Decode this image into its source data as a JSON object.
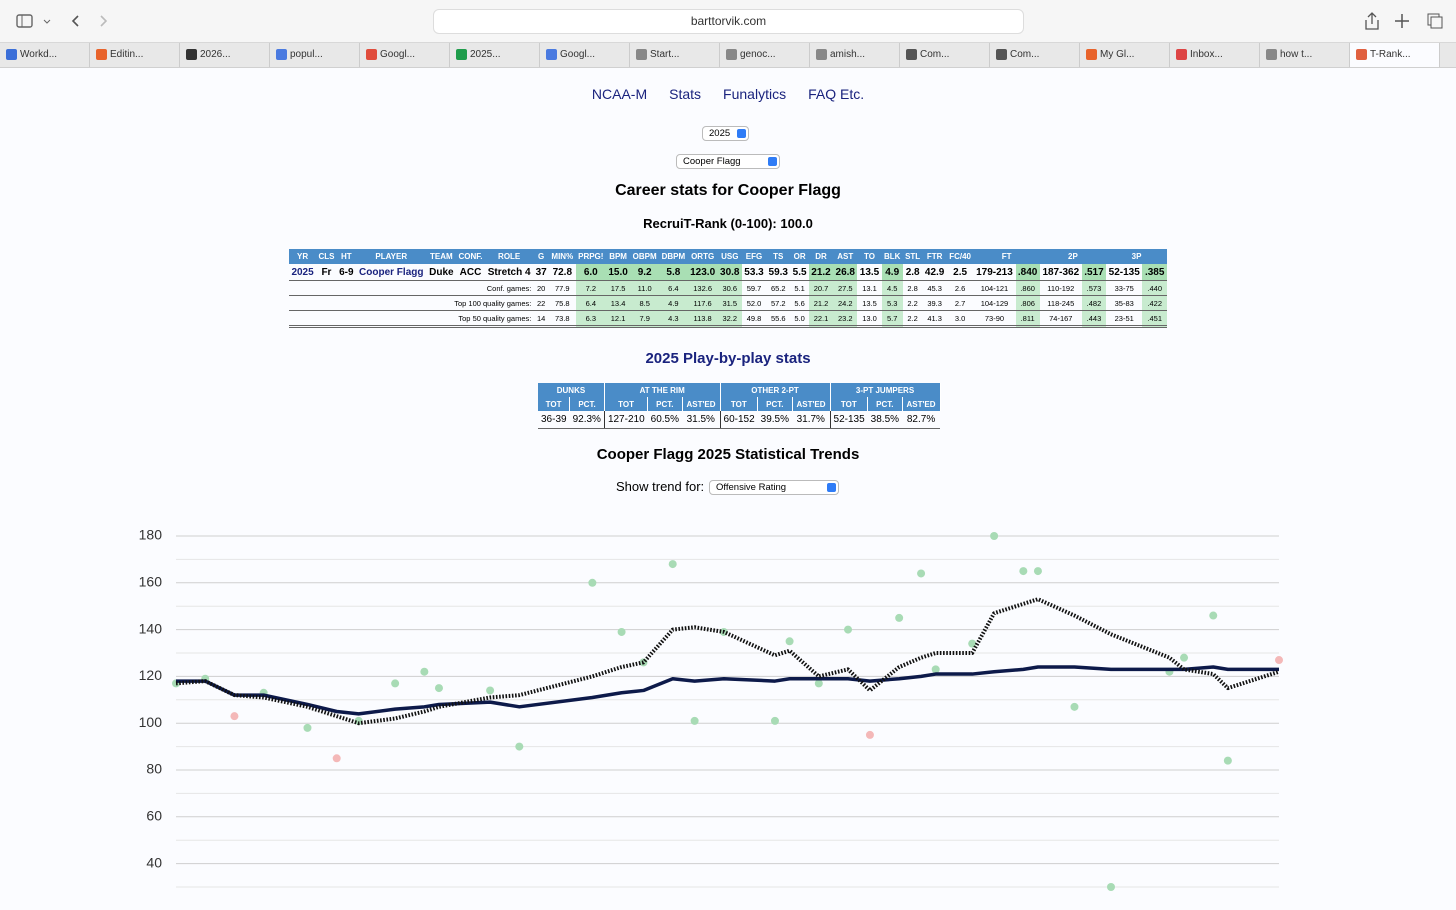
{
  "browser": {
    "url": "barttorvik.com",
    "tabs": [
      "Workd...",
      "Editin...",
      "2026...",
      "popul...",
      "Googl...",
      "2025...",
      "Googl...",
      "Start...",
      "genoc...",
      "amish...",
      "Com...",
      "Com...",
      "My Gl...",
      "Inbox...",
      "how t...",
      "T-Rank..."
    ]
  },
  "nav": [
    "NCAA-M",
    "Stats",
    "Funalytics",
    "FAQ Etc."
  ],
  "year_select": "2025",
  "player_select": "Cooper Flagg",
  "title": "Career stats for Cooper Flagg",
  "recruit_rank": "RecruiT-Rank (0-100): 100.0",
  "career_table": {
    "headers": [
      "YR",
      "CLS",
      "HT",
      "PLAYER",
      "TEAM",
      "CONF.",
      "ROLE",
      "G",
      "MIN%",
      "PRPG!",
      "BPM",
      "OBPM",
      "DBPM",
      "ORTG",
      "USG",
      "EFG",
      "TS",
      "OR",
      "DR",
      "AST",
      "TO",
      "BLK",
      "STL",
      "FTR",
      "FC/40",
      "FT",
      "2P",
      "3P"
    ],
    "rows": [
      [
        "2025",
        "Fr",
        "6-9",
        "Cooper Flagg",
        "Duke",
        "ACC",
        "Stretch 4",
        "37",
        "72.8",
        "6.0",
        "15.0",
        "9.2",
        "5.8",
        "123.0",
        "30.8",
        "53.3",
        "59.3",
        "5.5",
        "21.2",
        "26.8",
        "13.5",
        "4.9",
        "2.8",
        "42.9",
        "2.5",
        "179-213",
        ".840",
        "187-362",
        ".517",
        "52-135",
        ".385"
      ]
    ],
    "split_rows": [
      {
        "label": "Conf. games:",
        "cells": [
          "20",
          "77.9",
          "7.2",
          "17.5",
          "11.0",
          "6.4",
          "132.6",
          "30.6",
          "59.7",
          "65.2",
          "5.1",
          "20.7",
          "27.5",
          "13.1",
          "4.5",
          "2.8",
          "45.3",
          "2.6",
          "104-121",
          ".860",
          "110-192",
          ".573",
          "33-75",
          ".440"
        ]
      },
      {
        "label": "Top 100 quality games:",
        "cells": [
          "22",
          "75.8",
          "6.4",
          "13.4",
          "8.5",
          "4.9",
          "117.6",
          "31.5",
          "52.0",
          "57.2",
          "5.6",
          "21.2",
          "24.2",
          "13.5",
          "5.3",
          "2.2",
          "39.3",
          "2.7",
          "104-129",
          ".806",
          "118-245",
          ".482",
          "35-83",
          ".422"
        ]
      },
      {
        "label": "Top 50 quality games:",
        "cells": [
          "14",
          "73.8",
          "6.3",
          "12.1",
          "7.9",
          "4.3",
          "113.8",
          "32.2",
          "49.8",
          "55.6",
          "5.0",
          "22.1",
          "23.2",
          "13.0",
          "5.7",
          "2.2",
          "41.3",
          "3.0",
          "73-90",
          ".811",
          "74-167",
          ".443",
          "23-51",
          ".451"
        ]
      }
    ]
  },
  "pbp_title": "2025 Play-by-play stats",
  "pbp_table": {
    "groups": [
      "DUNKS",
      "AT THE RIM",
      "OTHER 2-PT",
      "3-PT JUMPERS"
    ],
    "subheaders": [
      "TOT",
      "PCT.",
      "TOT",
      "PCT.",
      "AST'ED",
      "TOT",
      "PCT.",
      "AST'ED",
      "TOT",
      "PCT.",
      "AST'ED"
    ],
    "row": [
      "36-39",
      "92.3%",
      "127-210",
      "60.5%",
      "31.5%",
      "60-152",
      "39.5%",
      "31.7%",
      "52-135",
      "38.5%",
      "82.7%"
    ]
  },
  "trends_title": "Cooper Flagg 2025 Statistical Trends",
  "trend_label": "Show trend for:",
  "trend_select": "Offensive Rating",
  "chart_data": {
    "type": "scatter",
    "x": [
      0,
      4,
      8,
      12,
      18,
      22,
      25,
      30,
      34,
      36,
      43,
      47,
      57,
      61,
      64,
      68,
      71,
      75,
      82,
      84,
      88,
      92,
      95,
      99,
      102,
      104,
      109,
      112,
      116,
      118,
      123,
      128,
      136,
      138,
      142,
      144,
      151
    ],
    "xlim": [
      0,
      151
    ],
    "ylim": [
      30,
      180
    ],
    "yticks": [
      40,
      60,
      80,
      100,
      120,
      140,
      160,
      180
    ],
    "minor_yticks": [
      30,
      50,
      70,
      90,
      110,
      130,
      150,
      170
    ],
    "grid": true,
    "points": {
      "values": [
        117,
        119,
        103,
        113,
        98,
        85,
        101,
        117,
        122,
        115,
        114,
        90,
        160,
        139,
        126,
        168,
        101,
        139,
        101,
        135,
        117,
        140,
        95,
        145,
        164,
        123,
        134,
        180,
        165,
        165,
        107,
        30,
        122,
        128,
        146,
        84,
        127
      ],
      "colors": [
        "#a8dbb5",
        "#a8dbb5",
        "#f4b8b8",
        "#a8dbb5",
        "#a8dbb5",
        "#f4b8b8",
        "#a8dbb5",
        "#a8dbb5",
        "#a8dbb5",
        "#a8dbb5",
        "#a8dbb5",
        "#a8dbb5",
        "#a8dbb5",
        "#a8dbb5",
        "#a8dbb5",
        "#a8dbb5",
        "#a8dbb5",
        "#a8dbb5",
        "#a8dbb5",
        "#a8dbb5",
        "#a8dbb5",
        "#a8dbb5",
        "#f4b8b8",
        "#a8dbb5",
        "#a8dbb5",
        "#a8dbb5",
        "#a8dbb5",
        "#a8dbb5",
        "#a8dbb5",
        "#a8dbb5",
        "#a8dbb5",
        "#a8dbb5",
        "#a8dbb5",
        "#a8dbb5",
        "#a8dbb5",
        "#a8dbb5",
        "#f4b8b8"
      ]
    },
    "lines": [
      {
        "color": "#0d1a4a",
        "dashed": false,
        "values": [
          118,
          118,
          112,
          112,
          108,
          105,
          104,
          106,
          107,
          108,
          109,
          107,
          111,
          113,
          114,
          119,
          118,
          119,
          118,
          119,
          119,
          119,
          118,
          119,
          120,
          121,
          121,
          122,
          123,
          124,
          124,
          123,
          123,
          123,
          124,
          123,
          123
        ]
      },
      {
        "color": "#111111",
        "dashed": true,
        "values": [
          117,
          118,
          112,
          111,
          107,
          103,
          100,
          102,
          105,
          107,
          111,
          112,
          120,
          124,
          126,
          140,
          141,
          139,
          129,
          131,
          120,
          123,
          114,
          124,
          128,
          130,
          130,
          147,
          151,
          153,
          146,
          138,
          128,
          123,
          121,
          115,
          122
        ]
      }
    ]
  }
}
